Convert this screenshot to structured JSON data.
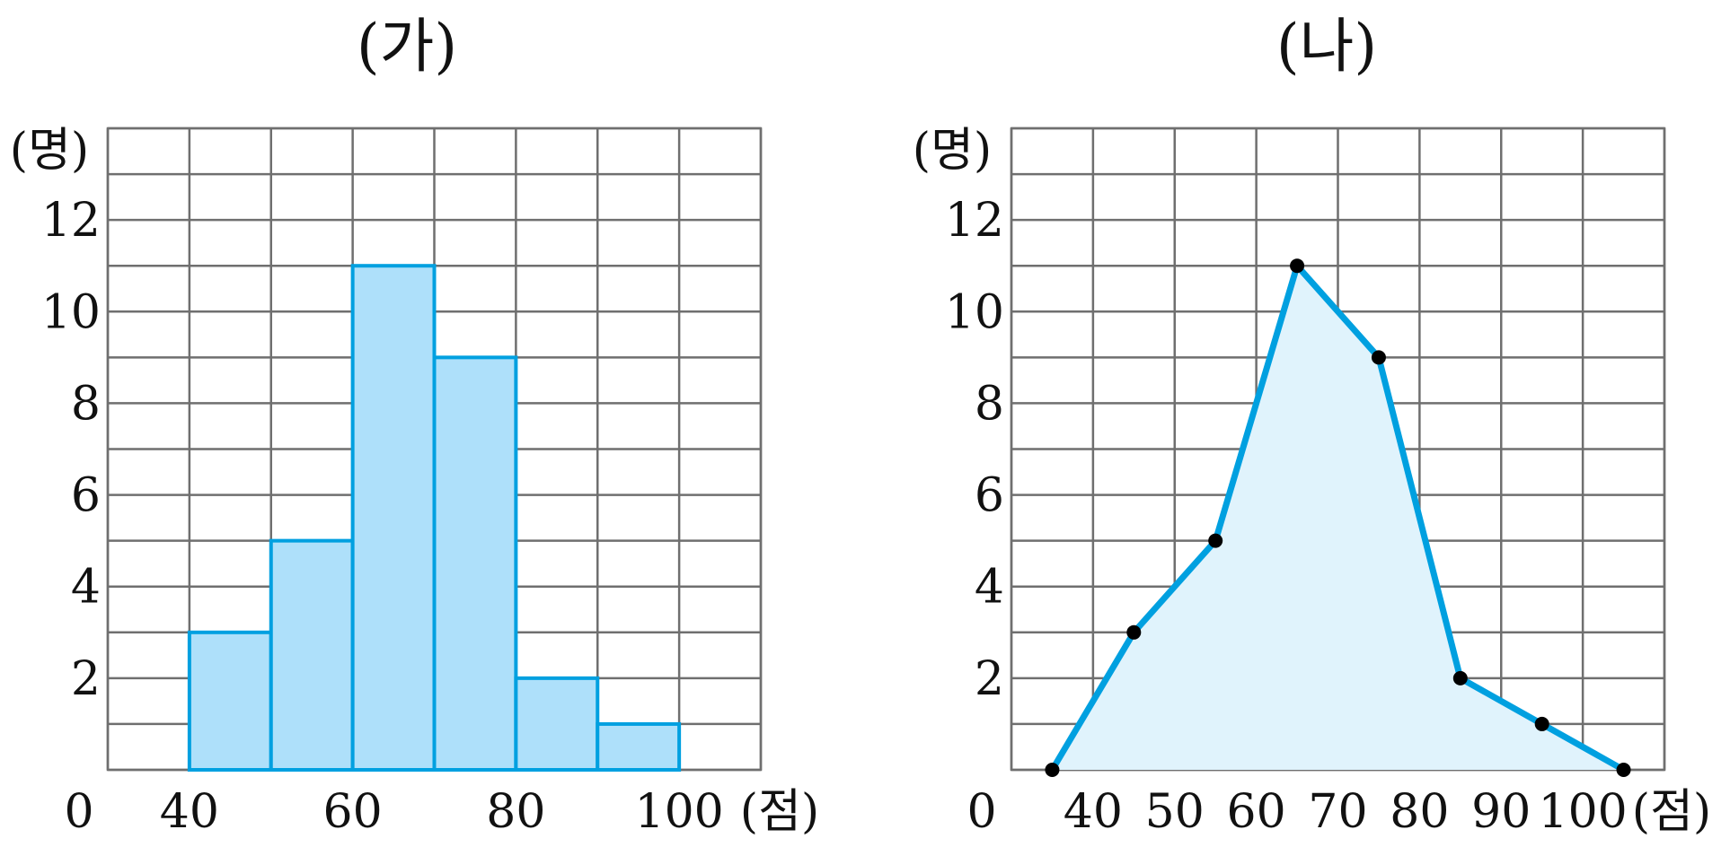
{
  "colors": {
    "accent": "#00A0E0",
    "bar_fill": "#AEE0FA",
    "area_fill": "#E0F3FC",
    "grid": "#6F6F6F",
    "point": "#000000"
  },
  "chart_data": [
    {
      "type": "bar",
      "subtype": "histogram",
      "title": "(가)",
      "ylabel": "(명)",
      "xlabel": "(점)",
      "origin_label": "0",
      "bins": [
        [
          40,
          50
        ],
        [
          50,
          60
        ],
        [
          60,
          70
        ],
        [
          70,
          80
        ],
        [
          80,
          90
        ],
        [
          90,
          100
        ]
      ],
      "values": [
        3,
        5,
        11,
        9,
        2,
        1
      ],
      "x_tick_values": [
        40,
        60,
        80,
        100
      ],
      "x_tick_labels": [
        "40",
        "60",
        "80",
        "100"
      ],
      "y_tick_values": [
        2,
        4,
        6,
        8,
        10,
        12
      ],
      "y_tick_labels": [
        "2",
        "4",
        "6",
        "8",
        "10",
        "12"
      ],
      "xlim": [
        30,
        110
      ],
      "ylim": [
        0,
        14
      ],
      "grid": true
    },
    {
      "type": "area",
      "subtype": "frequency-polygon",
      "title": "(나)",
      "ylabel": "(명)",
      "xlabel": "(점)",
      "origin_label": "0",
      "x": [
        35,
        45,
        55,
        65,
        75,
        85,
        95,
        105
      ],
      "y": [
        0,
        3,
        5,
        11,
        9,
        2,
        1,
        0
      ],
      "x_tick_values": [
        40,
        50,
        60,
        70,
        80,
        90,
        100
      ],
      "x_tick_labels": [
        "40",
        "50",
        "60",
        "70",
        "80",
        "90",
        "100"
      ],
      "y_tick_values": [
        2,
        4,
        6,
        8,
        10,
        12
      ],
      "y_tick_labels": [
        "2",
        "4",
        "6",
        "8",
        "10",
        "12"
      ],
      "xlim": [
        30,
        110
      ],
      "ylim": [
        0,
        14
      ],
      "grid": true
    }
  ]
}
